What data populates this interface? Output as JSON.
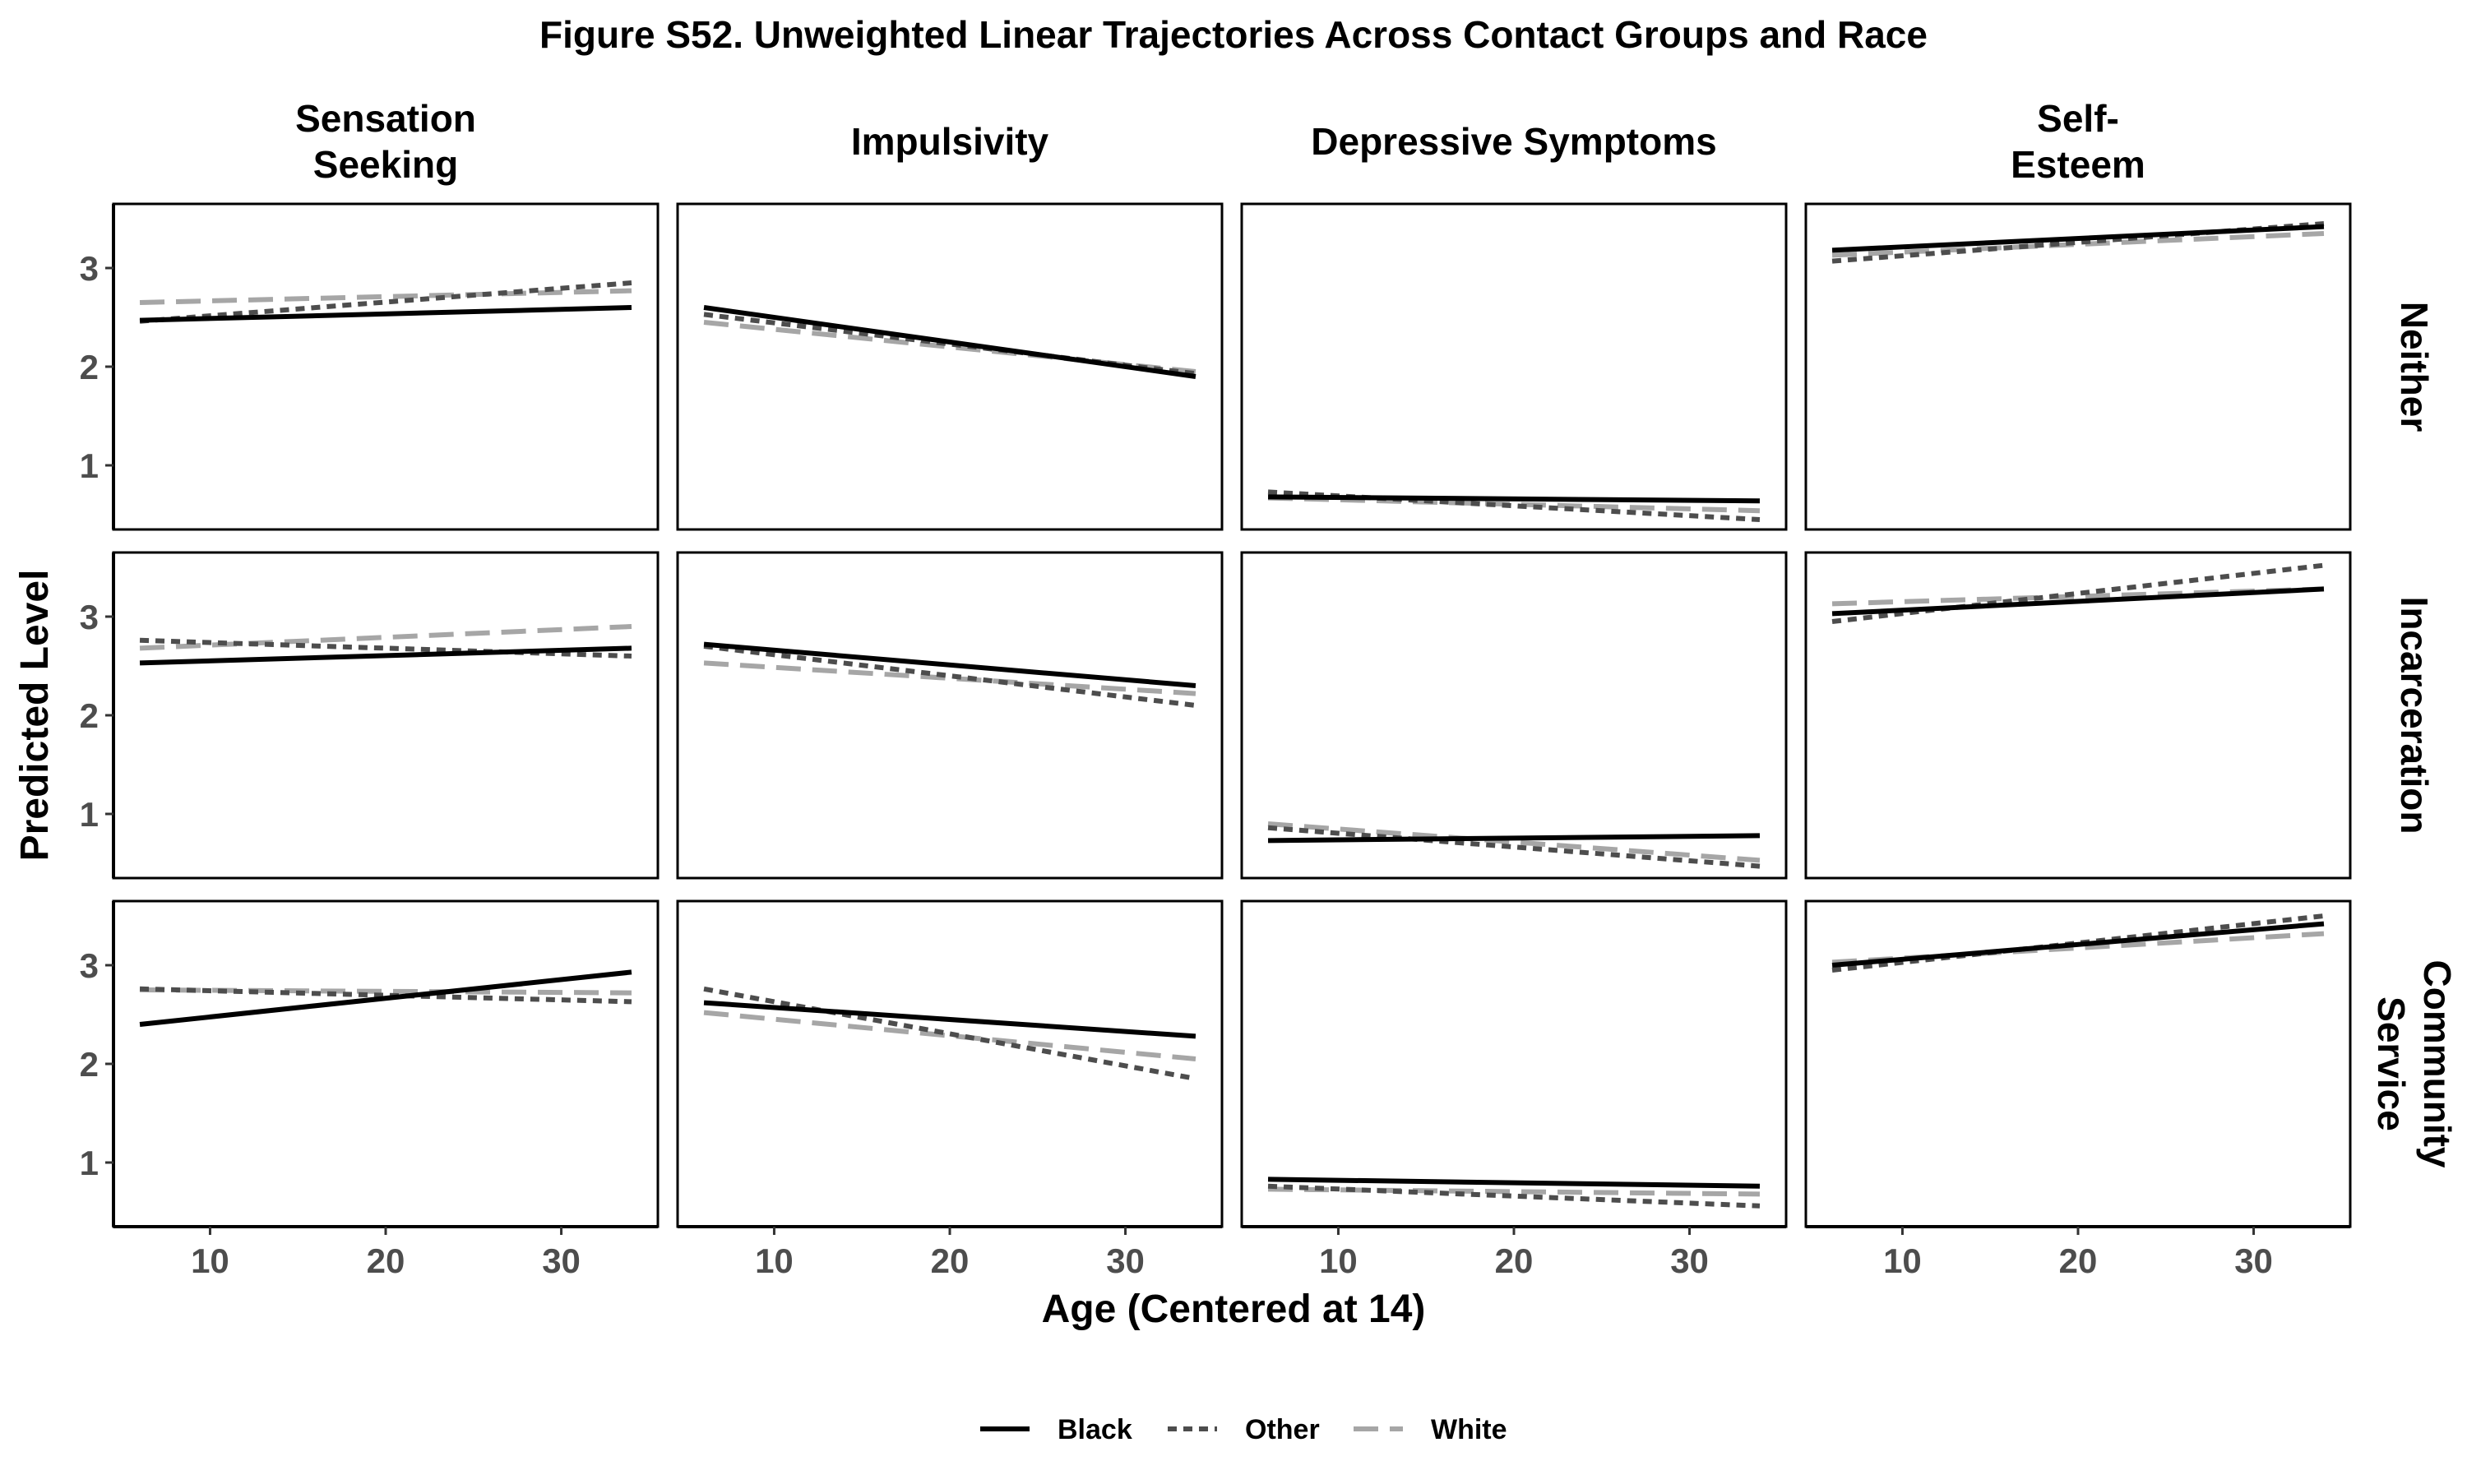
{
  "chart_data": {
    "type": "line",
    "title": "Figure S52. Unweighted Linear Trajectories Across Contact Groups and Race",
    "xlabel": "Age (Centered at 14)",
    "ylabel": "Predicted Level",
    "xlim": [
      4.5,
      35.5
    ],
    "ylim": [
      0.35,
      3.65
    ],
    "x_ticks": [
      10,
      20,
      30
    ],
    "y_ticks": [
      1,
      2,
      3
    ],
    "grid": false,
    "legend_position": "bottom",
    "columns": [
      "Sensation\nSeeking",
      "Impulsivity",
      "Depressive Symptoms",
      "Self-\nEsteem"
    ],
    "rows": [
      "Neither",
      "Incarceration",
      "Community\nService"
    ],
    "series_styles": [
      {
        "name": "Black",
        "color": "#000000",
        "dash": "solid"
      },
      {
        "name": "Other",
        "color": "#4d4d4d",
        "dash": "dotted"
      },
      {
        "name": "White",
        "color": "#a6a6a6",
        "dash": "dashed"
      }
    ],
    "x": [
      6,
      34
    ],
    "panels": [
      [
        {
          "Black": [
            2.47,
            2.6
          ],
          "Other": [
            2.46,
            2.85
          ],
          "White": [
            2.65,
            2.77
          ]
        },
        {
          "Black": [
            2.6,
            1.9
          ],
          "Other": [
            2.53,
            1.93
          ],
          "White": [
            2.45,
            1.95
          ]
        },
        {
          "Black": [
            0.68,
            0.64
          ],
          "Other": [
            0.73,
            0.45
          ],
          "White": [
            0.67,
            0.54
          ]
        },
        {
          "Black": [
            3.18,
            3.42
          ],
          "Other": [
            3.07,
            3.45
          ],
          "White": [
            3.13,
            3.35
          ]
        }
      ],
      [
        {
          "Black": [
            2.53,
            2.68
          ],
          "Other": [
            2.76,
            2.6
          ],
          "White": [
            2.68,
            2.9
          ]
        },
        {
          "Black": [
            2.72,
            2.3
          ],
          "Other": [
            2.7,
            2.1
          ],
          "White": [
            2.53,
            2.22
          ]
        },
        {
          "Black": [
            0.73,
            0.78
          ],
          "Other": [
            0.86,
            0.47
          ],
          "White": [
            0.9,
            0.53
          ]
        },
        {
          "Black": [
            3.03,
            3.28
          ],
          "Other": [
            2.95,
            3.52
          ],
          "White": [
            3.13,
            3.28
          ]
        }
      ],
      [
        {
          "Black": [
            2.4,
            2.93
          ],
          "Other": [
            2.76,
            2.63
          ],
          "White": [
            2.75,
            2.72
          ]
        },
        {
          "Black": [
            2.62,
            2.28
          ],
          "Other": [
            2.76,
            1.85
          ],
          "White": [
            2.52,
            2.05
          ]
        },
        {
          "Black": [
            0.83,
            0.76
          ],
          "Other": [
            0.76,
            0.56
          ],
          "White": [
            0.73,
            0.68
          ]
        },
        {
          "Black": [
            3.0,
            3.42
          ],
          "Other": [
            2.95,
            3.5
          ],
          "White": [
            3.03,
            3.32
          ]
        }
      ]
    ]
  }
}
